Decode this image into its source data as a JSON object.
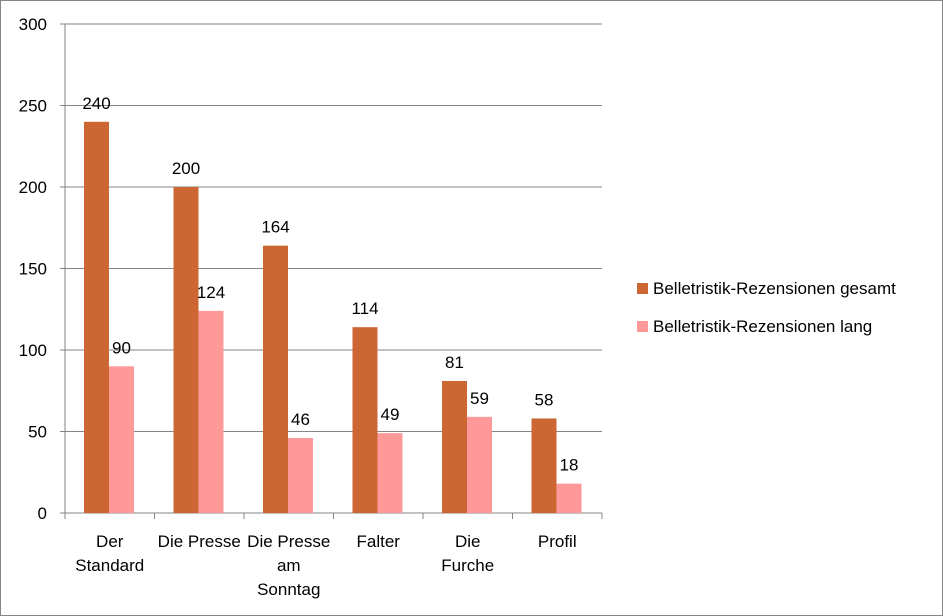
{
  "chart_data": {
    "type": "bar",
    "title": "",
    "xlabel": "",
    "ylabel": "",
    "categories": [
      [
        "Der",
        "Standard"
      ],
      [
        "Die Presse"
      ],
      [
        "Die Presse",
        "am",
        "Sonntag"
      ],
      [
        "Falter"
      ],
      [
        "Die",
        "Furche"
      ],
      [
        "Profil"
      ]
    ],
    "series": [
      {
        "name": "Belletristik-Rezensionen gesamt",
        "color": "#CC6633",
        "values": [
          240,
          200,
          164,
          114,
          81,
          58
        ]
      },
      {
        "name": "Belletristik-Rezensionen lang",
        "color": "#FF9999",
        "values": [
          90,
          124,
          46,
          49,
          59,
          18
        ]
      }
    ],
    "ylim": [
      0,
      300
    ],
    "yticks": [
      0,
      50,
      100,
      150,
      200,
      250,
      300
    ],
    "grid": true,
    "data_labels": true,
    "legend_position": "right"
  }
}
